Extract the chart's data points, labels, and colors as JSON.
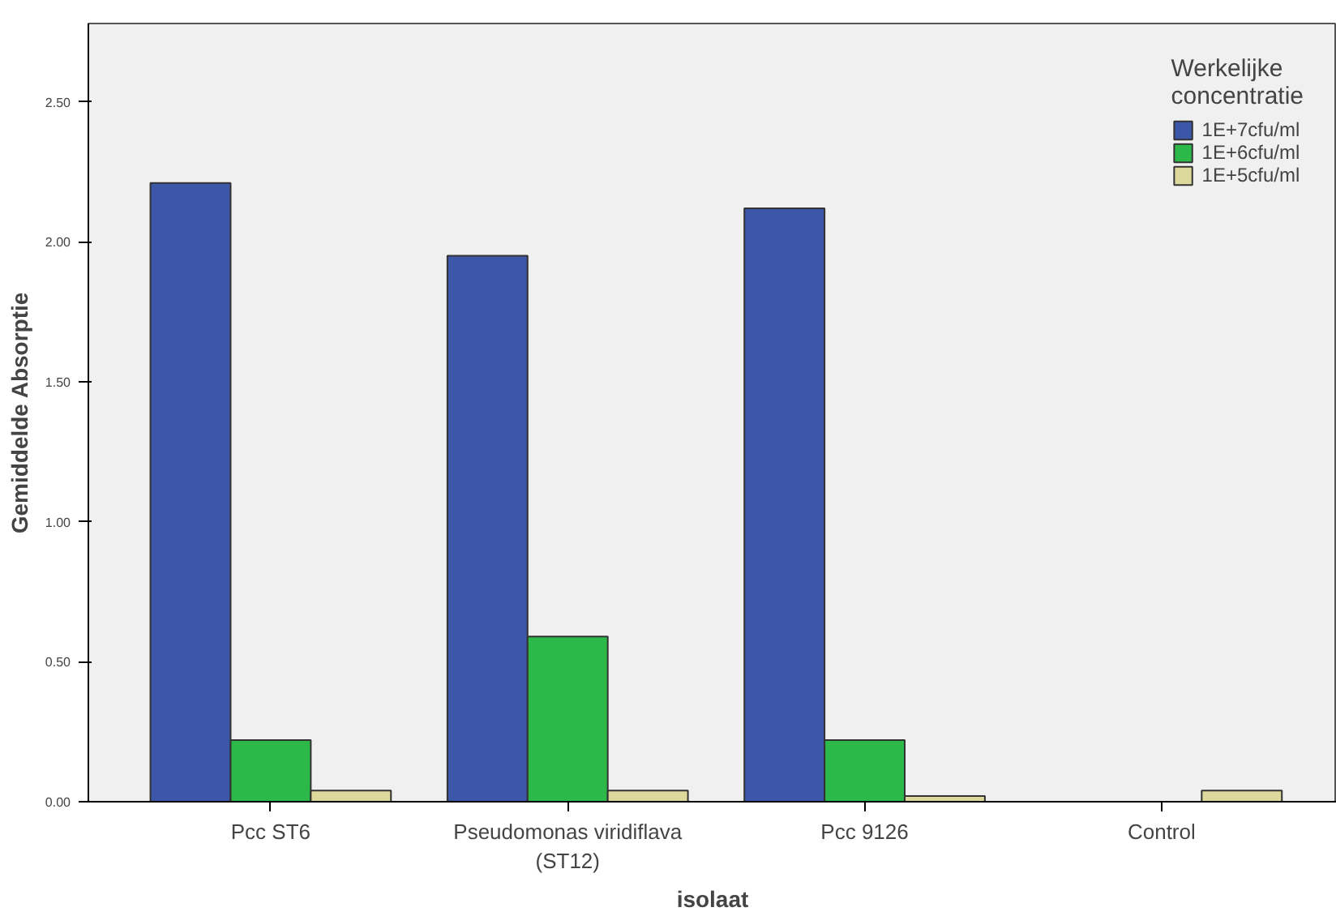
{
  "chart_data": {
    "type": "bar",
    "xlabel": "isolaat",
    "ylabel": "Gemiddelde Absorptie",
    "legend_title": "Werkelijke\nconcentratie",
    "categories": [
      "Pcc ST6",
      "Pseudomonas viridiflava\n(ST12)",
      "Pcc 9126",
      "Control"
    ],
    "series": [
      {
        "name": "1E+7cfu/ml",
        "color": "#3c56a8",
        "values": [
          2.21,
          1.95,
          2.12,
          null
        ]
      },
      {
        "name": "1E+6cfu/ml",
        "color": "#2db84a",
        "values": [
          0.22,
          0.59,
          0.22,
          null
        ]
      },
      {
        "name": "1E+5cfu/ml",
        "color": "#ddd99c",
        "values": [
          0.04,
          0.04,
          0.02,
          0.04
        ]
      }
    ],
    "ylim": [
      0,
      2.78
    ],
    "yticks": [
      {
        "value": 0,
        "label": "0.00"
      },
      {
        "value": 0.5,
        "label": "0.50"
      },
      {
        "value": 1,
        "label": "1.00"
      },
      {
        "value": 1.5,
        "label": "1.50"
      },
      {
        "value": 2,
        "label": "2.00"
      },
      {
        "value": 2.5,
        "label": "2.50"
      }
    ],
    "grid": false,
    "legend": "top right"
  }
}
